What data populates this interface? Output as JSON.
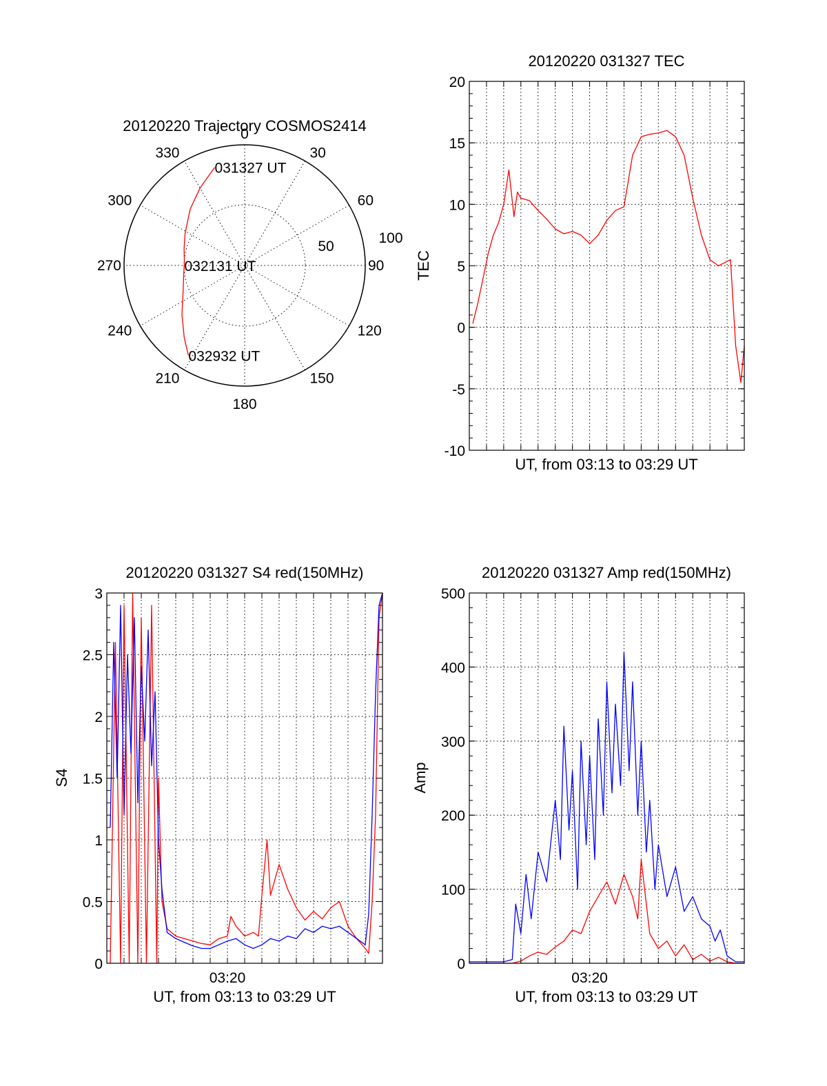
{
  "chart_data": [
    {
      "type": "polar-trajectory",
      "title": "20120220 Trajectory COSMOS2414",
      "azimuth_labels": [
        "0",
        "30",
        "60",
        "90",
        "120",
        "150",
        "180",
        "210",
        "240",
        "270",
        "300",
        "330"
      ],
      "radius_labels": [
        "50",
        "100"
      ],
      "track_color": "#ff0000",
      "track": [
        {
          "az": 343,
          "r": 85
        },
        {
          "az": 330,
          "r": 74
        },
        {
          "az": 316,
          "r": 65
        },
        {
          "az": 298,
          "r": 56
        },
        {
          "az": 285,
          "r": 52
        },
        {
          "az": 273,
          "r": 50
        },
        {
          "az": 262,
          "r": 51
        },
        {
          "az": 248,
          "r": 55
        },
        {
          "az": 232,
          "r": 66
        },
        {
          "az": 220,
          "r": 78
        },
        {
          "az": 212,
          "r": 88
        }
      ],
      "annotations": [
        {
          "text": "031327 UT",
          "az": 343,
          "r": 85
        },
        {
          "text": "032131 UT",
          "az": 270,
          "r": 50
        },
        {
          "text": "032932 UT",
          "az": 212,
          "r": 88
        }
      ]
    },
    {
      "type": "line",
      "title": "20120220 031327 TEC",
      "ylabel": "TEC",
      "xlabel": "UT, from 03:13 to 03:29 UT",
      "xlim": [
        0,
        16
      ],
      "ylim": [
        -10,
        20
      ],
      "yticks": [
        -10,
        -5,
        0,
        5,
        10,
        15,
        20
      ],
      "xtick_labels": [],
      "grid": true,
      "series": [
        {
          "color": "#ff0000",
          "x": [
            0.2,
            0.5,
            0.8,
            1.1,
            1.4,
            1.7,
            2.0,
            2.3,
            2.6,
            2.8,
            3.0,
            3.5,
            4.0,
            4.5,
            5.0,
            5.5,
            6.0,
            6.5,
            7.0,
            7.5,
            8.0,
            8.5,
            9.0,
            9.5,
            10.0,
            10.5,
            11.0,
            11.5,
            12.0,
            12.5,
            13.0,
            13.5,
            14.0,
            14.5,
            15.2,
            15.5,
            15.8,
            16.0
          ],
          "y": [
            0.3,
            2.0,
            4.0,
            6.0,
            7.5,
            8.5,
            10.0,
            12.8,
            9.0,
            11.0,
            10.5,
            10.3,
            9.5,
            8.8,
            8.0,
            7.6,
            7.8,
            7.5,
            6.8,
            7.5,
            8.7,
            9.5,
            9.8,
            14.0,
            15.5,
            15.7,
            15.8,
            16.0,
            15.5,
            14.0,
            10.5,
            7.5,
            5.5,
            5.0,
            5.5,
            -1.5,
            -4.5,
            -1.5
          ]
        }
      ]
    },
    {
      "type": "line",
      "title": "20120220 031327 S4 red(150MHz)",
      "ylabel": "S4",
      "xlabel": "UT, from 03:13 to 03:29 UT",
      "xlim": [
        0,
        16
      ],
      "ylim": [
        0,
        3
      ],
      "yticks": [
        0,
        0.5,
        1,
        1.5,
        2,
        2.5,
        3
      ],
      "xtick_labels": [
        {
          "x": 7,
          "label": "03:20"
        }
      ],
      "grid": true,
      "series": [
        {
          "color": "#ff0000",
          "x": [
            0.2,
            0.5,
            0.8,
            1.0,
            1.3,
            1.5,
            1.8,
            2.0,
            2.3,
            2.6,
            2.9,
            3.0,
            3.2,
            3.5,
            4.0,
            4.5,
            5.0,
            5.5,
            6.0,
            6.5,
            7.0,
            7.2,
            7.5,
            8.0,
            8.5,
            8.8,
            9.0,
            9.3,
            9.5,
            10.0,
            10.5,
            11.0,
            11.5,
            12.0,
            12.5,
            13.0,
            13.5,
            14.0,
            14.5,
            15.0,
            15.2,
            15.4,
            15.6,
            15.8,
            16.0
          ],
          "y": [
            0.0,
            2.6,
            0.0,
            2.9,
            0.0,
            3.0,
            0.0,
            2.8,
            0.0,
            2.9,
            0.0,
            1.5,
            0.5,
            0.28,
            0.22,
            0.2,
            0.18,
            0.16,
            0.15,
            0.2,
            0.22,
            0.38,
            0.3,
            0.22,
            0.25,
            0.22,
            0.55,
            1.0,
            0.55,
            0.8,
            0.6,
            0.45,
            0.35,
            0.42,
            0.36,
            0.45,
            0.5,
            0.3,
            0.2,
            0.12,
            0.08,
            0.5,
            1.2,
            2.8,
            3.0
          ]
        },
        {
          "color": "#0000ff",
          "x": [
            0.2,
            0.4,
            0.6,
            0.8,
            1.0,
            1.2,
            1.4,
            1.6,
            1.8,
            2.0,
            2.2,
            2.4,
            2.6,
            2.8,
            3.0,
            3.2,
            3.5,
            4.0,
            4.5,
            5.0,
            5.5,
            6.0,
            6.5,
            7.0,
            7.5,
            8.0,
            8.5,
            9.0,
            9.5,
            10.0,
            10.5,
            11.0,
            11.5,
            12.0,
            12.5,
            13.0,
            13.5,
            14.0,
            14.5,
            15.0,
            15.2,
            15.4,
            15.6,
            15.8,
            16.0
          ],
          "y": [
            1.1,
            2.6,
            1.5,
            2.9,
            1.2,
            2.5,
            1.7,
            2.8,
            1.3,
            2.4,
            1.8,
            2.7,
            1.6,
            2.2,
            1.0,
            0.6,
            0.25,
            0.2,
            0.17,
            0.14,
            0.12,
            0.12,
            0.15,
            0.18,
            0.2,
            0.15,
            0.12,
            0.15,
            0.2,
            0.18,
            0.22,
            0.2,
            0.28,
            0.25,
            0.3,
            0.28,
            0.3,
            0.25,
            0.2,
            0.15,
            0.4,
            1.2,
            2.2,
            2.9,
            3.0
          ]
        }
      ]
    },
    {
      "type": "line",
      "title": "20120220 031327 Amp red(150MHz)",
      "ylabel": "Amp",
      "xlabel": "UT, from 03:13 to 03:29 UT",
      "xlim": [
        0,
        16
      ],
      "ylim": [
        0,
        500
      ],
      "yticks": [
        0,
        100,
        200,
        300,
        400,
        500
      ],
      "xtick_labels": [
        {
          "x": 7,
          "label": "03:20"
        }
      ],
      "grid": true,
      "series": [
        {
          "color": "#0000ff",
          "x": [
            0.0,
            1.0,
            2.0,
            2.5,
            2.7,
            3.0,
            3.3,
            3.6,
            4.0,
            4.5,
            5.0,
            5.3,
            5.5,
            5.8,
            6.0,
            6.3,
            6.5,
            6.8,
            7.0,
            7.3,
            7.5,
            7.8,
            8.0,
            8.3,
            8.5,
            8.8,
            9.0,
            9.3,
            9.5,
            9.8,
            10.0,
            10.3,
            10.5,
            10.8,
            11.0,
            11.5,
            12.0,
            12.5,
            13.0,
            13.5,
            14.0,
            14.3,
            14.6,
            15.0,
            15.5,
            16.0
          ],
          "y": [
            2,
            2,
            2,
            5,
            80,
            40,
            120,
            60,
            150,
            110,
            220,
            140,
            320,
            180,
            260,
            100,
            300,
            160,
            280,
            140,
            330,
            200,
            380,
            230,
            350,
            240,
            420,
            260,
            380,
            200,
            300,
            150,
            220,
            100,
            160,
            90,
            130,
            70,
            90,
            60,
            50,
            30,
            45,
            10,
            2,
            2
          ]
        },
        {
          "color": "#ff0000",
          "x": [
            0.0,
            2.5,
            3.0,
            3.5,
            4.0,
            4.5,
            5.0,
            5.5,
            6.0,
            6.5,
            7.0,
            7.5,
            8.0,
            8.5,
            9.0,
            9.5,
            9.8,
            10.0,
            10.5,
            11.0,
            11.5,
            12.0,
            12.5,
            13.0,
            13.5,
            14.0,
            14.5,
            15.0,
            15.5,
            16.0
          ],
          "y": [
            0,
            0,
            3,
            10,
            15,
            12,
            22,
            30,
            45,
            40,
            70,
            90,
            110,
            80,
            120,
            90,
            60,
            140,
            40,
            20,
            30,
            10,
            25,
            5,
            12,
            3,
            8,
            2,
            0,
            0
          ]
        }
      ]
    }
  ]
}
